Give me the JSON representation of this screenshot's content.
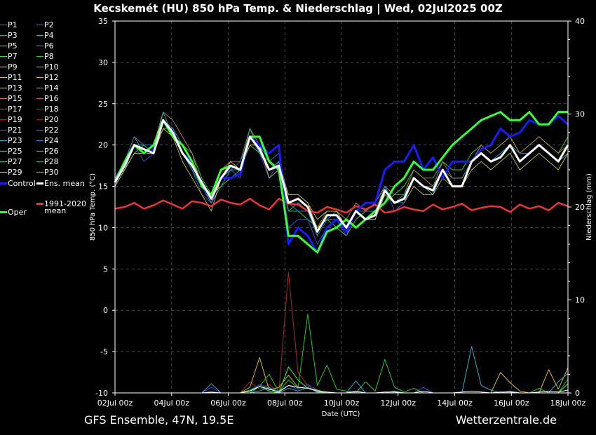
{
  "chart_data": {
    "type": "line",
    "title": "Kecskemét  (HU)  850 hPa Temp. & Niederschlag | Wed, 02Jul2025 00Z",
    "footer_left": "GFS Ensemble, 47N, 19.5E",
    "footer_right": "Wetterzentrale.de",
    "xlabel": "Date (UTC)",
    "ylabel": "850 hPa Temp. (°C)",
    "y2label": "Niederschlag (mm)",
    "ylim": [
      -10,
      35
    ],
    "y2lim": [
      0,
      40
    ],
    "grid": true,
    "x_ticks": [
      "02Jul 00z",
      "04Jul 00z",
      "06Jul 00z",
      "08Jul 00z",
      "10Jul 00z",
      "12Jul 00z",
      "14Jul 00z",
      "16Jul 00z",
      "18Jul 00z"
    ],
    "y_ticks": [
      35,
      30,
      25,
      20,
      15,
      10,
      5,
      0,
      -5,
      -10
    ],
    "y2_ticks": [
      40,
      30,
      20,
      10,
      0
    ],
    "legend_placement": "left",
    "colors": {
      "control": "#1a1aff",
      "ens_mean": "#ffffff",
      "oper": "#33ff33",
      "climate": "#ee3333",
      "members": [
        "#3355ff",
        "#2266dd",
        "#22aaaa",
        "#22bbcc",
        "#33cc88",
        "#22aa77",
        "#33dd33",
        "#22cc22",
        "#99cc44",
        "#cccc33",
        "#ddbb22",
        "#ccaa44",
        "#bb8844",
        "#cc7733",
        "#cc6633",
        "#bb4422",
        "#993322",
        "#aa2222",
        "#4455ee",
        "#3366ee",
        "#33aacc",
        "#2288cc",
        "#44cccc",
        "#33ccaa",
        "#33bb66",
        "#22aa88",
        "#22dd55",
        "#11ee11",
        "#44ffaa",
        "#66ff66"
      ]
    },
    "legend": [
      {
        "label": "P1",
        "color": "#3355ff"
      },
      {
        "label": "P2",
        "color": "#2266dd"
      },
      {
        "label": "P3",
        "color": "#22aaaa"
      },
      {
        "label": "P4",
        "color": "#22bbcc"
      },
      {
        "label": "P5",
        "color": "#33cc88"
      },
      {
        "label": "P6",
        "color": "#22aa77"
      },
      {
        "label": "P7",
        "color": "#33dd33"
      },
      {
        "label": "P8",
        "color": "#22cc22"
      },
      {
        "label": "P9",
        "color": "#99cc44"
      },
      {
        "label": "P10",
        "color": "#33dd33"
      },
      {
        "label": "P11",
        "color": "#cccc33"
      },
      {
        "label": "P12",
        "color": "#ddbb22"
      },
      {
        "label": "P13",
        "color": "#ccaa44"
      },
      {
        "label": "P14",
        "color": "#bb8844"
      },
      {
        "label": "P15",
        "color": "#cc7733"
      },
      {
        "label": "P16",
        "color": "#cc6633"
      },
      {
        "label": "P17",
        "color": "#bb4422"
      },
      {
        "label": "P18",
        "color": "#993322"
      },
      {
        "label": "P19",
        "color": "#aa2222"
      },
      {
        "label": "P20",
        "color": "#882222"
      },
      {
        "label": "P21",
        "color": "#4455ee"
      },
      {
        "label": "P22",
        "color": "#3366ee"
      },
      {
        "label": "P23",
        "color": "#33aacc"
      },
      {
        "label": "P24",
        "color": "#2288cc"
      },
      {
        "label": "P25",
        "color": "#44cccc"
      },
      {
        "label": "P26",
        "color": "#33ccaa"
      },
      {
        "label": "P27",
        "color": "#33bb66"
      },
      {
        "label": "P28",
        "color": "#22aa88"
      },
      {
        "label": "P29",
        "color": "#aacc33"
      },
      {
        "label": "P30",
        "color": "#22dd55"
      },
      {
        "label": "Control",
        "color": "#1a1aff"
      },
      {
        "label": "Ens. mean",
        "color": "#ffffff"
      },
      {
        "label": "Oper",
        "color": "#33ff33"
      },
      {
        "label": "1991-2020 mean",
        "color": "#ee3333"
      }
    ],
    "series": [
      {
        "name": "Control",
        "kind": "temp",
        "values": [
          15.5,
          17.5,
          20,
          19,
          19.5,
          23,
          21.5,
          19,
          18,
          15,
          13.5,
          16,
          16,
          16.5,
          21,
          20,
          19,
          20,
          8,
          10,
          9,
          7,
          10,
          11,
          9.5,
          12,
          13,
          13,
          17,
          18,
          18,
          20,
          17,
          18.5,
          16,
          18,
          18,
          18,
          19.5,
          20,
          22,
          21,
          21.5,
          23,
          22.5,
          22.5,
          23.5,
          22.5
        ]
      },
      {
        "name": "Ens. mean",
        "kind": "temp",
        "values": [
          15.5,
          17.5,
          20,
          19.5,
          19,
          23,
          21.5,
          19,
          17.5,
          15.5,
          13.5,
          16,
          17.5,
          17,
          21,
          19.5,
          17,
          17.5,
          13,
          13.5,
          12.5,
          9.5,
          11.5,
          11.5,
          10,
          12,
          11,
          11.5,
          14.5,
          13,
          13.5,
          16,
          15,
          14.5,
          17,
          15,
          15,
          18,
          19,
          18,
          18.5,
          20,
          18,
          19,
          20,
          19,
          18,
          20
        ]
      },
      {
        "name": "Oper",
        "kind": "temp",
        "values": [
          15.5,
          18,
          20,
          19,
          20,
          23,
          21,
          20,
          18,
          15,
          14,
          17,
          17.5,
          17,
          21,
          21,
          18,
          17,
          9,
          9,
          8,
          7,
          9.5,
          10,
          11,
          10,
          11,
          12,
          13,
          15,
          16,
          18,
          17,
          17,
          18.5,
          20,
          21,
          22,
          23,
          23.5,
          24,
          23,
          23,
          24,
          22.5,
          22.5,
          24,
          24
        ]
      },
      {
        "name": "1991-2020 mean",
        "kind": "temp",
        "values": [
          12.3,
          12.5,
          13,
          12.3,
          12.7,
          13.3,
          12.8,
          12.3,
          13.2,
          13,
          12.6,
          13.4,
          13,
          12.8,
          13.5,
          12.7,
          12.2,
          13.5,
          12.9,
          12.8,
          12,
          11.8,
          12.5,
          12.2,
          11.8,
          12.6,
          12.2,
          12.8,
          11.8,
          12,
          12.5,
          12.2,
          12,
          12.8,
          12.2,
          12.5,
          12.9,
          12.1,
          12.4,
          12.6,
          12.5,
          11.9,
          12.8,
          12.3,
          12.6,
          12.1,
          13,
          12.6
        ]
      },
      {
        "name": "P7",
        "kind": "temp",
        "values": [
          15,
          17,
          19,
          20,
          19,
          22,
          22,
          20,
          19,
          16,
          14,
          15,
          16,
          17,
          20,
          19,
          18,
          17,
          12,
          12,
          11,
          10,
          11,
          10,
          9,
          11,
          12,
          12,
          13,
          14,
          15,
          17,
          16,
          16,
          18,
          17,
          17,
          19,
          20,
          19,
          20,
          21,
          19,
          20,
          21,
          20,
          19,
          21
        ]
      },
      {
        "name": "P14",
        "kind": "temp",
        "values": [
          16,
          18,
          21,
          19,
          20,
          24,
          23,
          21,
          19,
          15,
          13,
          17,
          18,
          18,
          22,
          20,
          17,
          18,
          14,
          14,
          13,
          10,
          12,
          12,
          11,
          13,
          12,
          13,
          15,
          14,
          14,
          17,
          16,
          15,
          18,
          16,
          16,
          18,
          20,
          19,
          20,
          21,
          19,
          20,
          21,
          20,
          19,
          20
        ]
      },
      {
        "name": "P21",
        "kind": "temp",
        "values": [
          15,
          18,
          20,
          18,
          19,
          23,
          22,
          19,
          17,
          14,
          13,
          16,
          17,
          16,
          21,
          19,
          16,
          18,
          10,
          11,
          11,
          8,
          10,
          11,
          9,
          12,
          11,
          11,
          15,
          12,
          13,
          16,
          15,
          14,
          17,
          15,
          15,
          18,
          19,
          18,
          19,
          20,
          18,
          19,
          20,
          19,
          18,
          20
        ]
      },
      {
        "name": "P3",
        "kind": "temp",
        "values": [
          16,
          17,
          20,
          20,
          19,
          24,
          21,
          19,
          17,
          15,
          13,
          15,
          17,
          17,
          22,
          19,
          17,
          18,
          12,
          13,
          12,
          9,
          11,
          12,
          10,
          12,
          11,
          12,
          14,
          13,
          14,
          16,
          15,
          14,
          17,
          16,
          16,
          18,
          19,
          18,
          19,
          20,
          18,
          19,
          20,
          19,
          18,
          19
        ]
      },
      {
        "name": "P11",
        "kind": "temp",
        "values": [
          15,
          17,
          19,
          19,
          19,
          22,
          21,
          18,
          16,
          14,
          12,
          16,
          18,
          17,
          20,
          20,
          16,
          17,
          14,
          14,
          13,
          11,
          12,
          12,
          10,
          12,
          11,
          11,
          14,
          13,
          13,
          15,
          14,
          14,
          16,
          15,
          15,
          17,
          18,
          17,
          18,
          19,
          17,
          18,
          19,
          18,
          17,
          19
        ]
      },
      {
        "name": "P24",
        "kind": "temp",
        "values": [
          16,
          18,
          21,
          20,
          20,
          23,
          22,
          20,
          18,
          15,
          14,
          16,
          17,
          18,
          21,
          20,
          18,
          19,
          13,
          12,
          12,
          9,
          11,
          11,
          10,
          12,
          12,
          12,
          15,
          13,
          13,
          16,
          15,
          15,
          17,
          15,
          15,
          18,
          19,
          18,
          19,
          20,
          19,
          19,
          20,
          19,
          18,
          20
        ]
      },
      {
        "name": "P1 precip",
        "kind": "precip",
        "values": [
          0,
          0,
          0,
          0,
          0,
          0,
          0,
          0,
          0,
          0,
          0.6,
          0,
          0,
          0,
          0.3,
          0.9,
          0.5,
          0.2,
          0.8,
          0.4,
          0.9,
          0.3,
          0,
          0,
          0,
          0.1,
          0,
          0,
          0,
          0,
          0,
          0,
          0.6,
          0,
          0,
          0,
          0,
          0,
          0,
          0,
          0,
          0,
          0,
          0,
          0,
          0,
          0,
          0
        ]
      },
      {
        "name": "P18 precip",
        "kind": "precip",
        "values": [
          0,
          0,
          0,
          0,
          0,
          0,
          0,
          0,
          0,
          0,
          0,
          0,
          0,
          0,
          1.2,
          0.4,
          0.9,
          0,
          13,
          2.2,
          0.8,
          0,
          0,
          0,
          0,
          0,
          0,
          0,
          0,
          0,
          0,
          0,
          0,
          0,
          0,
          0,
          0,
          0,
          0,
          0,
          0,
          0,
          0,
          0,
          0,
          0,
          0,
          0
        ]
      },
      {
        "name": "P12 precip",
        "kind": "precip",
        "values": [
          0,
          0,
          0,
          0,
          0,
          0,
          0,
          0,
          0,
          0,
          0,
          0,
          0,
          0,
          0.6,
          3.8,
          0.3,
          0.6,
          1.9,
          0.6,
          0.5,
          0.3,
          0,
          0,
          0,
          0,
          0,
          0,
          0,
          0,
          0,
          0,
          0,
          0,
          0,
          0,
          0,
          0,
          0,
          0,
          2.2,
          1.1,
          0.2,
          0,
          0,
          2.5,
          0.4,
          2.7
        ]
      },
      {
        "name": "P8 precip",
        "kind": "precip",
        "values": [
          0,
          0,
          0,
          0,
          0,
          0,
          0,
          0,
          0,
          0,
          0,
          0,
          0,
          0,
          0.3,
          0.7,
          2.0,
          0.1,
          1.4,
          0.5,
          8.5,
          0.8,
          3.0,
          0.4,
          0.2,
          0,
          1.2,
          0.2,
          3.6,
          0.6,
          0.1,
          0.5,
          0,
          0,
          0,
          0,
          0,
          0,
          0,
          0,
          0,
          0,
          0,
          0,
          0.5,
          0,
          0,
          1.5
        ]
      },
      {
        "name": "P23 precip",
        "kind": "precip",
        "values": [
          0,
          0,
          0,
          0,
          0,
          0,
          0,
          0,
          0,
          0,
          1.0,
          0,
          0,
          0,
          0,
          0.2,
          0.6,
          0,
          0.5,
          0.2,
          0.6,
          0.1,
          0,
          0,
          0,
          1.3,
          0,
          0,
          0,
          0.2,
          0,
          0,
          0,
          0,
          0,
          0,
          0,
          5.0,
          0.8,
          0.3,
          0,
          0.2,
          0,
          0,
          0,
          0,
          1.2,
          2.1
        ]
      },
      {
        "name": "Oper precip",
        "kind": "precip",
        "values": [
          0,
          0,
          0,
          0,
          0,
          0,
          0,
          0,
          0,
          0,
          0,
          0,
          0,
          0,
          0,
          0.7,
          0.2,
          0,
          2.8,
          1.4,
          0.5,
          0.2,
          0,
          0,
          0,
          0,
          0,
          0,
          0,
          0,
          0,
          0,
          0,
          0,
          0,
          0,
          0,
          0,
          0,
          0,
          0,
          0,
          0,
          0,
          0,
          0,
          0,
          1.0
        ]
      },
      {
        "name": "Ens. mean precip",
        "kind": "precip",
        "values": [
          0,
          0,
          0,
          0,
          0,
          0,
          0,
          0,
          0,
          0,
          0.1,
          0,
          0,
          0,
          0.2,
          0.7,
          0.4,
          0.1,
          0.8,
          0.6,
          0.5,
          0.2,
          0.1,
          0,
          0,
          0.2,
          0,
          0,
          0.1,
          0.1,
          0,
          0,
          0.2,
          0,
          0,
          0,
          0.1,
          0.2,
          0.1,
          0,
          0.1,
          0.1,
          0,
          0,
          0.1,
          0.2,
          0.1,
          0.3
        ]
      }
    ]
  }
}
